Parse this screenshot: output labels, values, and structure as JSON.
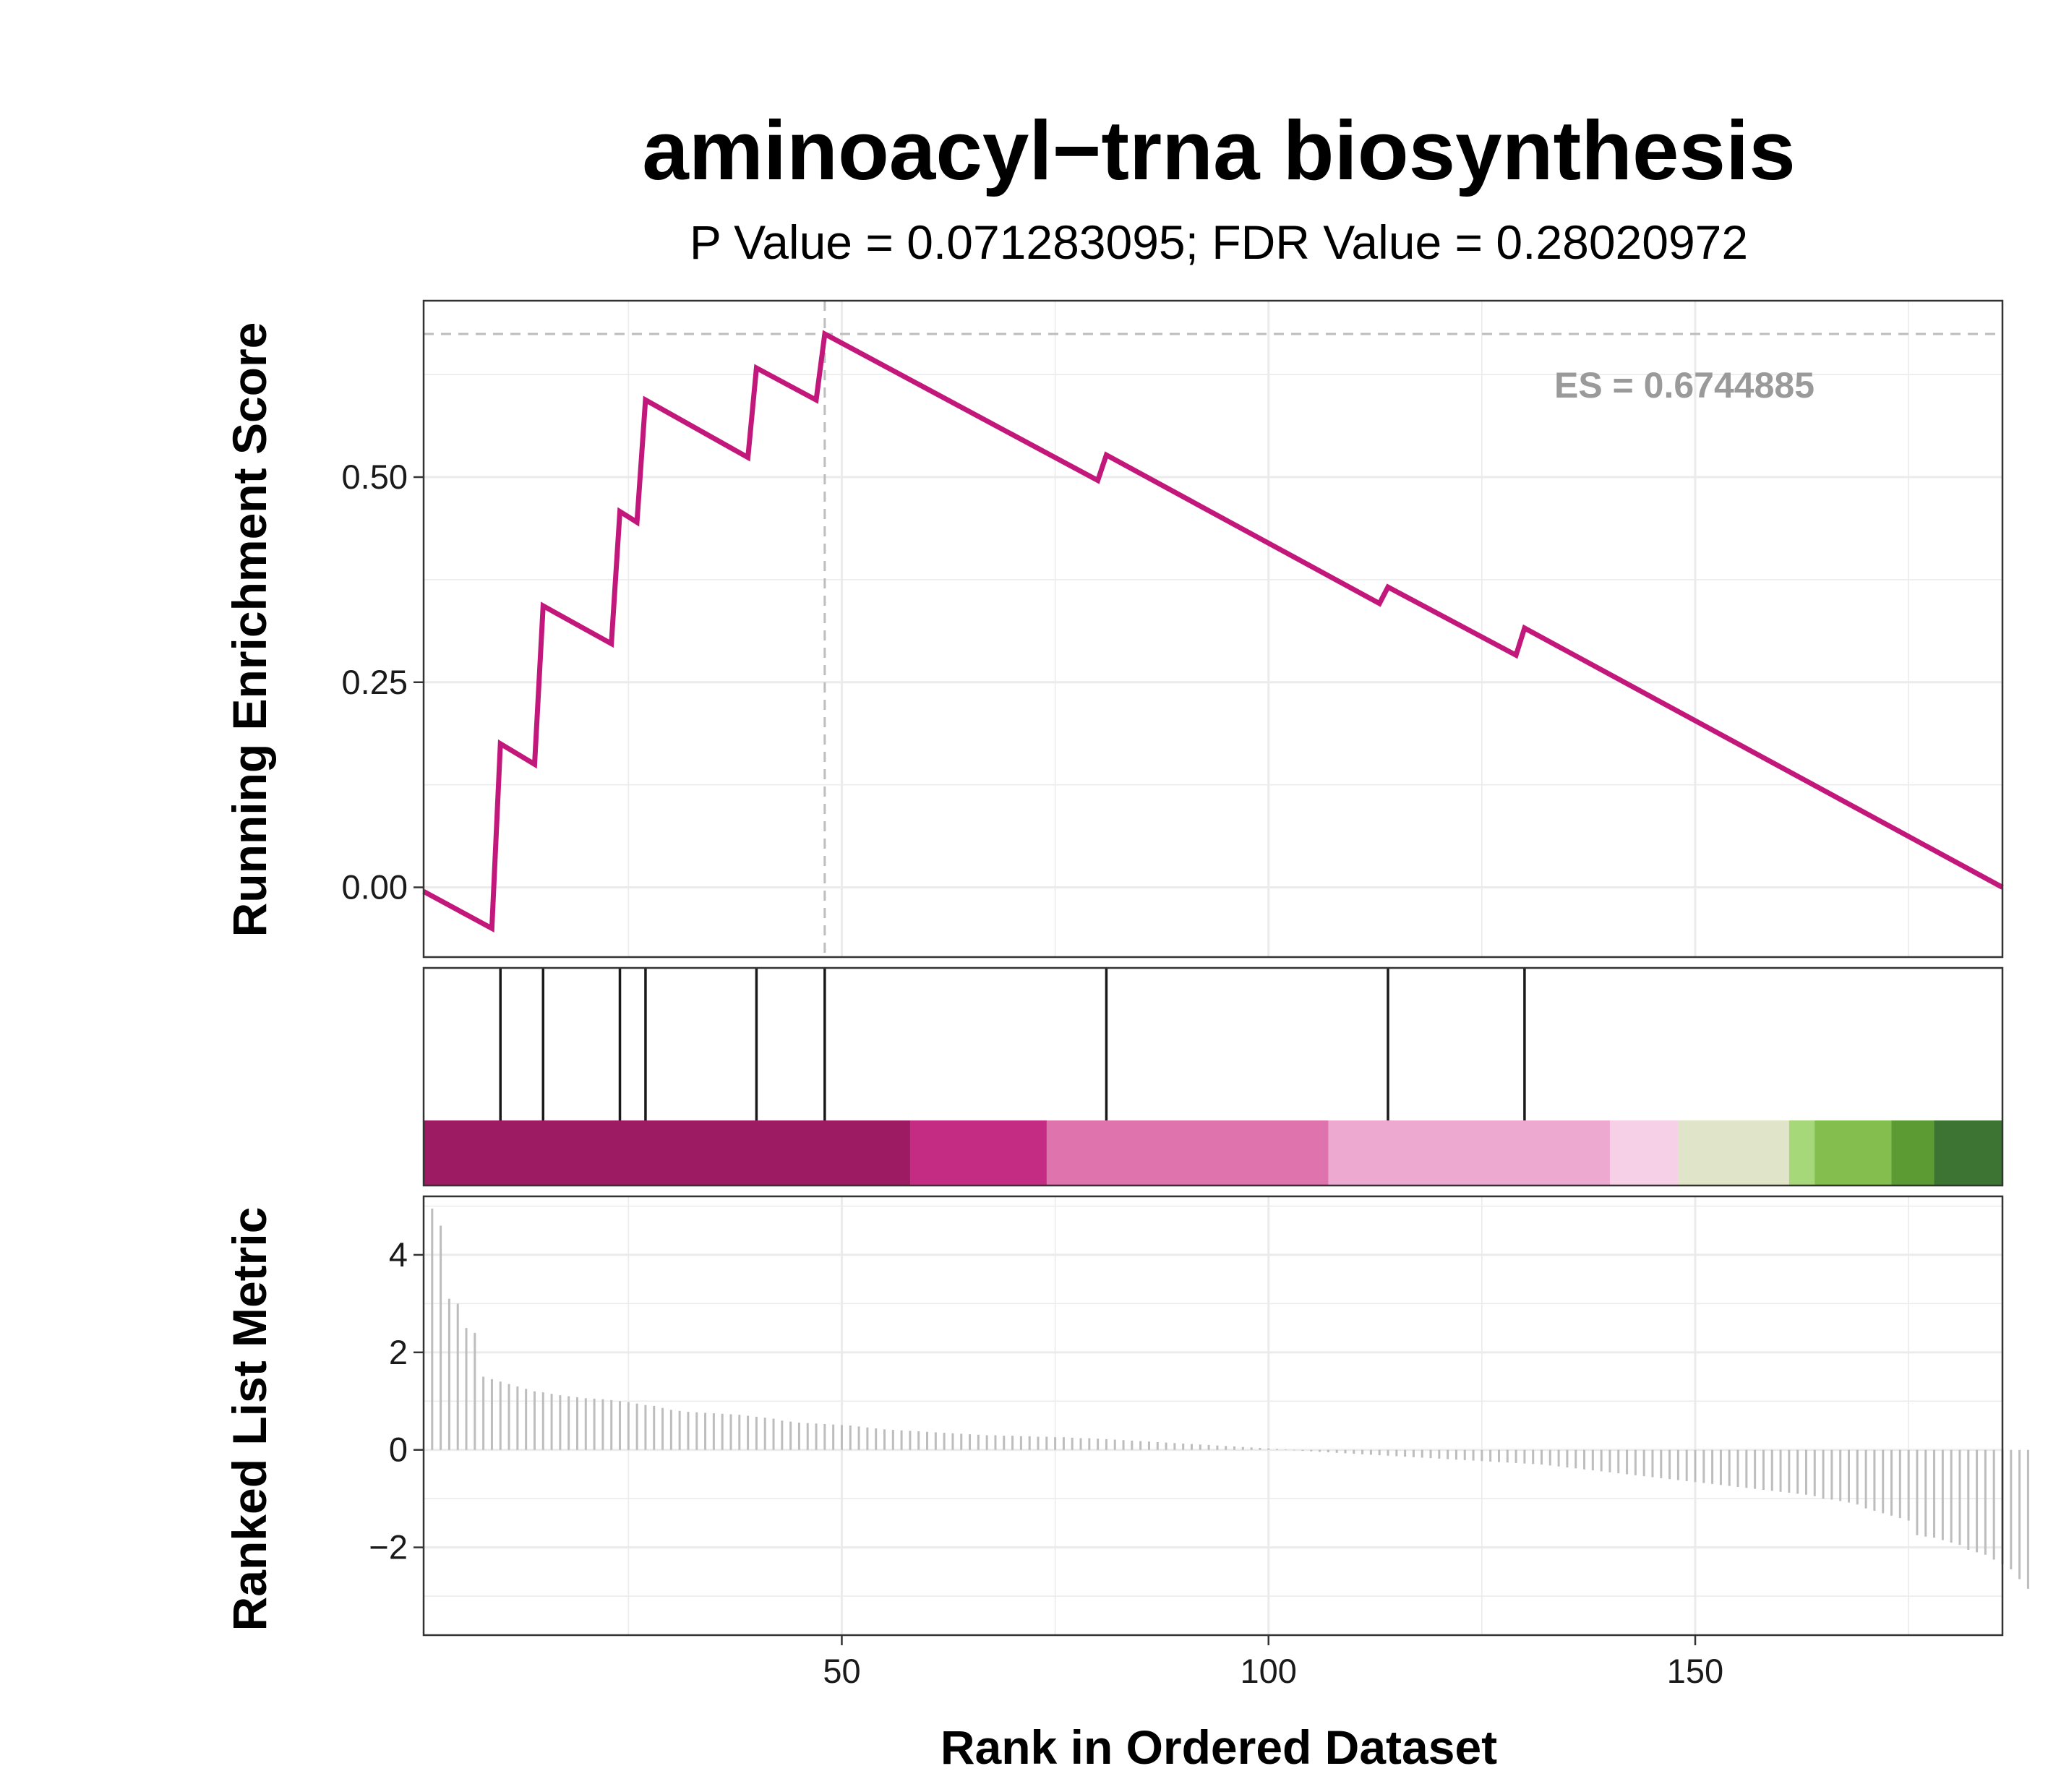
{
  "chart_data": {
    "type": "line",
    "title": "aminoacyl−trna biosynthesis",
    "subtitle": "P Value = 0.071283095; FDR Value = 0.28020972",
    "xlabel": "Rank in Ordered Dataset",
    "xlim": [
      1,
      186
    ],
    "x_ticks": [
      50,
      100,
      150
    ],
    "x_tick_labels": [
      "50",
      "100",
      "150"
    ],
    "grid": true,
    "running_es": {
      "ylabel": "Running Enrichment Score",
      "ylim": [
        -0.085,
        0.715
      ],
      "y_ticks": [
        0.0,
        0.25,
        0.5
      ],
      "y_tick_labels": [
        "0.00",
        "0.25",
        "0.50"
      ],
      "line_color": "#C2187B",
      "x": [
        1,
        9,
        10,
        14,
        15,
        23,
        24,
        26,
        27,
        39,
        40,
        47,
        48,
        80,
        81,
        113,
        114,
        129,
        130,
        186
      ],
      "y": [
        -0.005,
        -0.05,
        0.175,
        0.15,
        0.343,
        0.297,
        0.458,
        0.445,
        0.594,
        0.524,
        0.633,
        0.594,
        0.6745,
        0.496,
        0.527,
        0.346,
        0.366,
        0.283,
        0.316,
        0.0
      ],
      "es_value": 0.6744885,
      "es_rank": 48,
      "es_label": "ES = 0.6744885",
      "reference_line_color": "#bdbdbd"
    },
    "gene_hits": {
      "ranks": [
        10,
        15,
        24,
        27,
        40,
        48,
        81,
        114,
        130
      ],
      "line_color": "#000000"
    },
    "color_bar": {
      "segments": [
        {
          "from": 1,
          "to": 58,
          "color": "#9C1B62"
        },
        {
          "from": 58,
          "to": 74,
          "color": "#C42C84"
        },
        {
          "from": 74,
          "to": 107,
          "color": "#DE73AE"
        },
        {
          "from": 107,
          "to": 140,
          "color": "#EDA9D0"
        },
        {
          "from": 140,
          "to": 148,
          "color": "#F6D0E6"
        },
        {
          "from": 148,
          "to": 161,
          "color": "#E0E4C8"
        },
        {
          "from": 161,
          "to": 164,
          "color": "#A6D87A"
        },
        {
          "from": 164,
          "to": 173,
          "color": "#83BE4E"
        },
        {
          "from": 173,
          "to": 178,
          "color": "#5C9A34"
        },
        {
          "from": 178,
          "to": 186,
          "color": "#3D7434"
        }
      ]
    },
    "ranked_metric": {
      "ylabel": "Ranked List Metric",
      "ylim": [
        -3.8,
        5.2
      ],
      "y_ticks": [
        -2,
        0,
        2,
        4
      ],
      "y_tick_labels": [
        "−2",
        "0",
        "2",
        "4"
      ],
      "bar_color": "#bdbdbd",
      "values": [
        4.95,
        4.6,
        3.1,
        3.0,
        2.5,
        2.4,
        1.5,
        1.45,
        1.4,
        1.35,
        1.3,
        1.25,
        1.2,
        1.18,
        1.15,
        1.12,
        1.1,
        1.08,
        1.06,
        1.05,
        1.04,
        1.02,
        1.0,
        0.98,
        0.95,
        0.92,
        0.9,
        0.86,
        0.82,
        0.8,
        0.78,
        0.77,
        0.76,
        0.75,
        0.74,
        0.73,
        0.72,
        0.7,
        0.68,
        0.66,
        0.64,
        0.6,
        0.58,
        0.56,
        0.55,
        0.54,
        0.53,
        0.52,
        0.51,
        0.5,
        0.48,
        0.46,
        0.44,
        0.42,
        0.41,
        0.4,
        0.39,
        0.38,
        0.37,
        0.36,
        0.35,
        0.34,
        0.33,
        0.32,
        0.31,
        0.3,
        0.3,
        0.29,
        0.29,
        0.28,
        0.28,
        0.27,
        0.27,
        0.26,
        0.26,
        0.25,
        0.24,
        0.24,
        0.23,
        0.22,
        0.21,
        0.2,
        0.19,
        0.18,
        0.17,
        0.16,
        0.15,
        0.14,
        0.13,
        0.12,
        0.11,
        0.1,
        0.09,
        0.08,
        0.07,
        0.06,
        0.05,
        0.04,
        0.03,
        0.02,
        0.01,
        -0.01,
        -0.02,
        -0.03,
        -0.04,
        -0.05,
        -0.06,
        -0.07,
        -0.08,
        -0.09,
        -0.1,
        -0.11,
        -0.12,
        -0.13,
        -0.14,
        -0.15,
        -0.16,
        -0.17,
        -0.18,
        -0.19,
        -0.2,
        -0.21,
        -0.22,
        -0.23,
        -0.24,
        -0.25,
        -0.26,
        -0.27,
        -0.28,
        -0.29,
        -0.3,
        -0.32,
        -0.34,
        -0.36,
        -0.38,
        -0.4,
        -0.42,
        -0.44,
        -0.46,
        -0.48,
        -0.5,
        -0.52,
        -0.54,
        -0.56,
        -0.58,
        -0.6,
        -0.62,
        -0.64,
        -0.66,
        -0.68,
        -0.7,
        -0.72,
        -0.74,
        -0.76,
        -0.78,
        -0.8,
        -0.82,
        -0.84,
        -0.86,
        -0.88,
        -0.9,
        -0.92,
        -0.95,
        -1.0,
        -1.02,
        -1.05,
        -1.08,
        -1.12,
        -1.2,
        -1.25,
        -1.3,
        -1.35,
        -1.4,
        -1.45,
        -1.75,
        -1.78,
        -1.8,
        -1.85,
        -1.9,
        -1.95,
        -2.05,
        -2.1,
        -2.15,
        -2.25,
        -2.35,
        -2.45,
        -2.65,
        -2.85
      ]
    }
  }
}
